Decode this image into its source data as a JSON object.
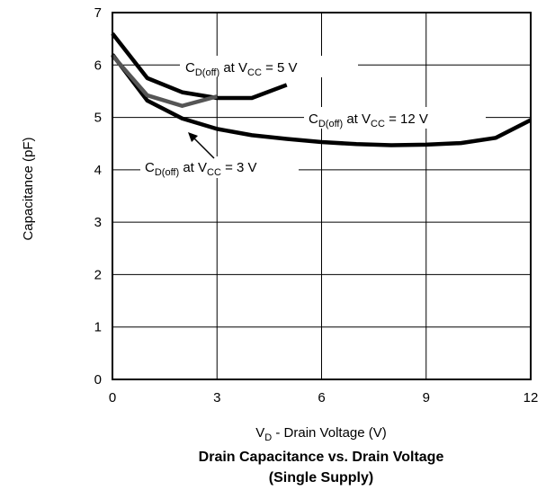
{
  "chart_data": {
    "type": "line",
    "title": "Drain Capacitance vs. Drain Voltage",
    "subtitle": "(Single Supply)",
    "ylabel": "Capacitance (pF)",
    "xlabel_main": "V",
    "xlabel_sub": "D",
    "xlabel_rest": " - Drain Voltage (V)",
    "xlim": [
      0,
      12
    ],
    "ylim": [
      0,
      7
    ],
    "xticks": [
      0,
      3,
      6,
      9,
      12
    ],
    "yticks": [
      0,
      1,
      2,
      3,
      4,
      5,
      6,
      7
    ],
    "xtick_labels": [
      "0",
      "3",
      "6",
      "9",
      "12"
    ],
    "ytick_labels": [
      "0",
      "1",
      "2",
      "3",
      "4",
      "5",
      "6",
      "7"
    ],
    "grid": true,
    "series": [
      {
        "name": "CD(off) at VCC = 5 V",
        "color": "#000000",
        "points": [
          [
            0,
            6.6
          ],
          [
            1,
            5.75
          ],
          [
            2,
            5.48
          ],
          [
            3,
            5.37
          ],
          [
            4,
            5.37
          ],
          [
            5,
            5.62
          ]
        ]
      },
      {
        "name": "CD(off) at VCC = 12 V",
        "color": "#000000",
        "points": [
          [
            0,
            6.2
          ],
          [
            1,
            5.32
          ],
          [
            2,
            4.98
          ],
          [
            3,
            4.78
          ],
          [
            4,
            4.66
          ],
          [
            5,
            4.59
          ],
          [
            6,
            4.53
          ],
          [
            7,
            4.49
          ],
          [
            8,
            4.47
          ],
          [
            9,
            4.48
          ],
          [
            10,
            4.51
          ],
          [
            11,
            4.61
          ],
          [
            12,
            4.95
          ]
        ]
      },
      {
        "name": "CD(off) at VCC = 3 V",
        "color": "#555555",
        "points": [
          [
            0,
            6.18
          ],
          [
            1,
            5.42
          ],
          [
            2,
            5.22
          ],
          [
            3,
            5.4
          ]
        ]
      }
    ],
    "annotations": [
      {
        "base": "C",
        "sub1": "D(off)",
        "mid": " at V",
        "sub2": "CC",
        "rest": " = 5 V"
      },
      {
        "base": "C",
        "sub1": "D(off)",
        "mid": " at V",
        "sub2": "CC",
        "rest": " = 12 V"
      },
      {
        "base": "C",
        "sub1": "D(off)",
        "mid": " at V",
        "sub2": "CC",
        "rest": " = 3 V"
      }
    ]
  }
}
